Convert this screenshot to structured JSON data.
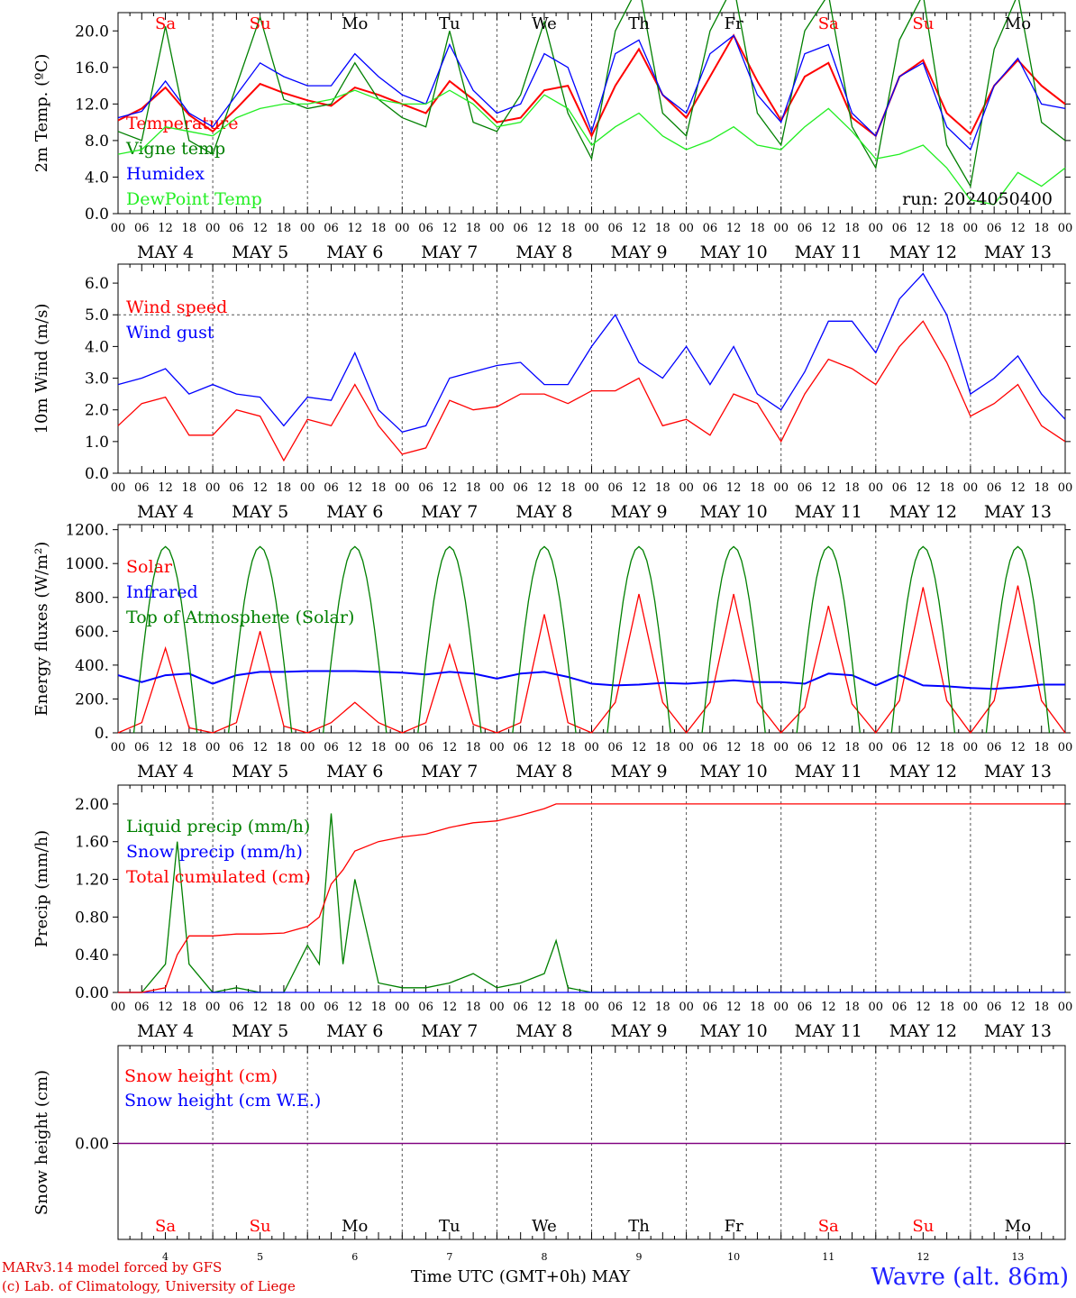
{
  "colors": {
    "red": "#ff0000",
    "darkgreen": "#008000",
    "blue": "#0000ff",
    "lightgreen": "#22ee22",
    "purple": "#800080",
    "gridgray": "#555555"
  },
  "days": [
    "Sa",
    "Su",
    "Mo",
    "Tu",
    "We",
    "Th",
    "Fr",
    "Sa",
    "Su",
    "Mo"
  ],
  "weekend_flags": [
    true,
    true,
    false,
    false,
    false,
    false,
    false,
    true,
    true,
    false
  ],
  "date_labels": [
    "MAY  4",
    "MAY  5",
    "MAY  6",
    "MAY  7",
    "MAY  8",
    "MAY  9",
    "MAY 10",
    "MAY 11",
    "MAY 12",
    "MAY 13"
  ],
  "hour_ticks": [
    "00",
    "06",
    "12",
    "18"
  ],
  "bottom_day_numbers": [
    "4",
    "5",
    "6",
    "7",
    "8",
    "9",
    "10",
    "11",
    "12",
    "13"
  ],
  "chart_data": [
    {
      "type": "line",
      "ylabel": "2m Temp. (ºC)",
      "ylim": [
        0,
        22
      ],
      "yticks": [
        "0.0",
        "4.0",
        "8.0",
        "12.0",
        "16.0",
        "20.0"
      ],
      "annotation": "run: 2024050400",
      "x_hours": [
        0,
        6,
        12,
        18,
        24,
        30,
        36,
        42,
        48,
        54,
        60,
        66,
        72,
        78,
        84,
        90,
        96,
        102,
        108,
        114,
        120,
        126,
        132,
        138,
        144,
        150,
        156,
        162,
        168,
        174,
        180,
        186,
        192,
        198,
        204,
        210,
        216,
        222,
        228,
        234,
        240
      ],
      "series": [
        {
          "name": "Temperature",
          "color": "red",
          "values": [
            10.2,
            11.5,
            13.8,
            10.8,
            9.0,
            11.5,
            14.2,
            13.2,
            12.4,
            11.8,
            13.8,
            13.0,
            12.0,
            11.0,
            14.5,
            12.5,
            10.0,
            10.5,
            13.5,
            14.0,
            8.5,
            14.0,
            18.0,
            13.0,
            10.5,
            15.0,
            19.5,
            14.5,
            10.2,
            15.0,
            16.5,
            10.5,
            8.5,
            15.0,
            16.8,
            11.0,
            8.7,
            14.0,
            16.8,
            14.0,
            12.0
          ]
        },
        {
          "name": "Vigne temp",
          "color": "darkgreen",
          "values": [
            9.0,
            8.0,
            20.5,
            8.0,
            6.5,
            14.0,
            21.5,
            12.5,
            11.5,
            12.0,
            16.5,
            12.5,
            10.5,
            9.5,
            20.0,
            10.0,
            9.0,
            13.0,
            21.0,
            11.0,
            6.0,
            20.0,
            25.0,
            11.0,
            8.5,
            20.0,
            25.0,
            11.0,
            7.5,
            20.0,
            24.0,
            9.5,
            5.0,
            19.0,
            24.0,
            7.5,
            3.0,
            18.0,
            24.0,
            10.0,
            8.0
          ]
        },
        {
          "name": "Humidex",
          "color": "blue",
          "values": [
            10.5,
            11.2,
            14.5,
            11.0,
            9.5,
            13.0,
            16.5,
            15.0,
            14.0,
            14.0,
            17.5,
            15.0,
            13.0,
            12.0,
            18.5,
            13.5,
            11.0,
            12.0,
            17.5,
            16.0,
            9.0,
            17.5,
            19.0,
            13.0,
            11.0,
            17.5,
            19.5,
            13.0,
            10.0,
            17.5,
            18.5,
            11.0,
            8.5,
            15.0,
            16.5,
            9.5,
            7.0,
            14.0,
            17.0,
            12.0,
            11.5
          ]
        },
        {
          "name": "DewPoint Temp",
          "color": "lightgreen",
          "values": [
            6.5,
            7.0,
            9.5,
            9.0,
            8.5,
            10.5,
            11.5,
            12.0,
            12.0,
            12.5,
            13.5,
            12.5,
            12.0,
            12.0,
            13.5,
            12.0,
            9.5,
            10.0,
            13.0,
            11.5,
            7.5,
            9.5,
            11.0,
            8.5,
            7.0,
            8.0,
            9.5,
            7.5,
            7.0,
            9.5,
            11.5,
            9.0,
            6.0,
            6.5,
            7.5,
            5.0,
            1.5,
            1.0,
            4.5,
            3.0,
            5.0
          ]
        }
      ]
    },
    {
      "type": "line",
      "ylabel": "10m Wind (m/s)",
      "ylim": [
        0,
        6.6
      ],
      "yticks": [
        "0.0",
        "1.0",
        "2.0",
        "3.0",
        "4.0",
        "5.0",
        "6.0"
      ],
      "reference_line": 5.0,
      "x_hours": [
        0,
        6,
        12,
        18,
        24,
        30,
        36,
        42,
        48,
        54,
        60,
        66,
        72,
        78,
        84,
        90,
        96,
        102,
        108,
        114,
        120,
        126,
        132,
        138,
        144,
        150,
        156,
        162,
        168,
        174,
        180,
        186,
        192,
        198,
        204,
        210,
        216,
        222,
        228,
        234,
        240
      ],
      "series": [
        {
          "name": "Wind speed",
          "color": "red",
          "values": [
            1.5,
            2.2,
            2.4,
            1.2,
            1.2,
            2.0,
            1.8,
            0.4,
            1.7,
            1.5,
            2.8,
            1.5,
            0.6,
            0.8,
            2.3,
            2.0,
            2.1,
            2.5,
            2.5,
            2.2,
            2.6,
            2.6,
            3.0,
            1.5,
            1.7,
            1.2,
            2.5,
            2.2,
            1.0,
            2.5,
            3.6,
            3.3,
            2.8,
            4.0,
            4.8,
            3.5,
            1.8,
            2.2,
            2.8,
            1.5,
            1.0
          ]
        },
        {
          "name": "Wind gust",
          "color": "blue",
          "values": [
            2.8,
            3.0,
            3.3,
            2.5,
            2.8,
            2.5,
            2.4,
            1.5,
            2.4,
            2.3,
            3.8,
            2.0,
            1.3,
            1.5,
            3.0,
            3.2,
            3.4,
            3.5,
            2.8,
            2.8,
            4.0,
            5.0,
            3.5,
            3.0,
            4.0,
            2.8,
            4.0,
            2.5,
            2.0,
            3.2,
            4.8,
            4.8,
            3.8,
            5.5,
            6.3,
            5.0,
            2.5,
            3.0,
            3.7,
            2.5,
            1.7
          ]
        }
      ]
    },
    {
      "type": "line",
      "ylabel": "Energy fluxes (W/m²)",
      "ylim": [
        0,
        1230
      ],
      "yticks": [
        "0.",
        "200.",
        "400.",
        "600.",
        "800.",
        "1000.",
        "1200."
      ],
      "x_hours": [
        0,
        6,
        12,
        18,
        24,
        30,
        36,
        42,
        48,
        54,
        60,
        66,
        72,
        78,
        84,
        90,
        96,
        102,
        108,
        114,
        120,
        126,
        132,
        138,
        144,
        150,
        156,
        162,
        168,
        174,
        180,
        186,
        192,
        198,
        204,
        210,
        216,
        222,
        228,
        234,
        240
      ],
      "series": [
        {
          "name": "Solar",
          "color": "red",
          "values": [
            0,
            60,
            500,
            30,
            0,
            60,
            600,
            40,
            0,
            60,
            180,
            60,
            0,
            60,
            520,
            50,
            0,
            60,
            700,
            60,
            0,
            180,
            820,
            180,
            0,
            180,
            820,
            180,
            0,
            150,
            750,
            170,
            0,
            190,
            860,
            190,
            0,
            190,
            870,
            190,
            0
          ]
        },
        {
          "name": "Infrared",
          "color": "blue",
          "values": [
            340,
            300,
            340,
            350,
            290,
            340,
            360,
            360,
            365,
            365,
            365,
            360,
            355,
            345,
            360,
            350,
            320,
            350,
            360,
            330,
            290,
            280,
            285,
            295,
            290,
            300,
            310,
            300,
            300,
            290,
            350,
            340,
            280,
            340,
            280,
            275,
            265,
            260,
            270,
            285,
            285
          ]
        },
        {
          "name": "Top of Atmosphere (Solar)",
          "color": "darkgreen",
          "type": "diurnal",
          "peak": 1100,
          "peak_hour": 12,
          "half_width_hours": 8
        }
      ]
    },
    {
      "type": "line",
      "ylabel": "Precip (mm/h)",
      "ylim": [
        0,
        2.2
      ],
      "yticks": [
        "0.00",
        "0.40",
        "0.80",
        "1.20",
        "1.60",
        "2.00"
      ],
      "x_hours": [
        0,
        6,
        12,
        15,
        18,
        24,
        30,
        36,
        42,
        48,
        51,
        54,
        57,
        60,
        66,
        72,
        78,
        84,
        90,
        96,
        102,
        108,
        111,
        114,
        120,
        126,
        132,
        138,
        144,
        150,
        156,
        162,
        168,
        174,
        180,
        186,
        192,
        198,
        204,
        210,
        216,
        222,
        228,
        234,
        240
      ],
      "series": [
        {
          "name": "Liquid precip (mm/h)",
          "color": "darkgreen",
          "values": [
            0,
            0,
            0.3,
            1.6,
            0.3,
            0,
            0.05,
            0,
            0,
            0.5,
            0.3,
            1.9,
            0.3,
            1.2,
            0.1,
            0.05,
            0.05,
            0.1,
            0.2,
            0.05,
            0.1,
            0.2,
            0.55,
            0.05,
            0,
            0,
            0,
            0,
            0,
            0,
            0,
            0,
            0,
            0,
            0,
            0,
            0,
            0,
            0,
            0,
            0,
            0,
            0,
            0,
            0
          ]
        },
        {
          "name": "Snow precip (mm/h)",
          "color": "blue",
          "values": [
            0,
            0,
            0,
            0,
            0,
            0,
            0,
            0,
            0,
            0,
            0,
            0,
            0,
            0,
            0,
            0,
            0,
            0,
            0,
            0,
            0,
            0,
            0,
            0,
            0,
            0,
            0,
            0,
            0,
            0,
            0,
            0,
            0,
            0,
            0,
            0,
            0,
            0,
            0,
            0,
            0,
            0,
            0,
            0,
            0
          ]
        },
        {
          "name": "Total cumulated (cm)",
          "color": "red",
          "values": [
            0,
            0,
            0.05,
            0.4,
            0.6,
            0.6,
            0.62,
            0.62,
            0.63,
            0.7,
            0.8,
            1.15,
            1.3,
            1.5,
            1.6,
            1.65,
            1.68,
            1.75,
            1.8,
            1.82,
            1.88,
            1.95,
            2.0,
            2.0,
            2.0,
            2.0,
            2.0,
            2.0,
            2.0,
            2.0,
            2.0,
            2.0,
            2.0,
            2.0,
            2.0,
            2.0,
            2.0,
            2.0,
            2.0,
            2.0,
            2.0,
            2.0,
            2.0,
            2.0,
            2.0
          ]
        }
      ]
    },
    {
      "type": "line",
      "ylabel": "Snow height (cm)",
      "yticks": [
        "0.00"
      ],
      "series": [
        {
          "name": "Snow height (cm)",
          "color": "red",
          "values": [
            0,
            0
          ]
        },
        {
          "name": "Snow height (cm W.E.)",
          "color": "blue",
          "values": [
            0,
            0
          ]
        }
      ]
    }
  ],
  "footer": {
    "model": "MARv3.14 model forced by GFS",
    "copyright": "(c) Lab. of Climatology, University of Liege",
    "xtitle": "Time UTC (GMT+0h) MAY",
    "station": "Wavre (alt. 86m)"
  }
}
